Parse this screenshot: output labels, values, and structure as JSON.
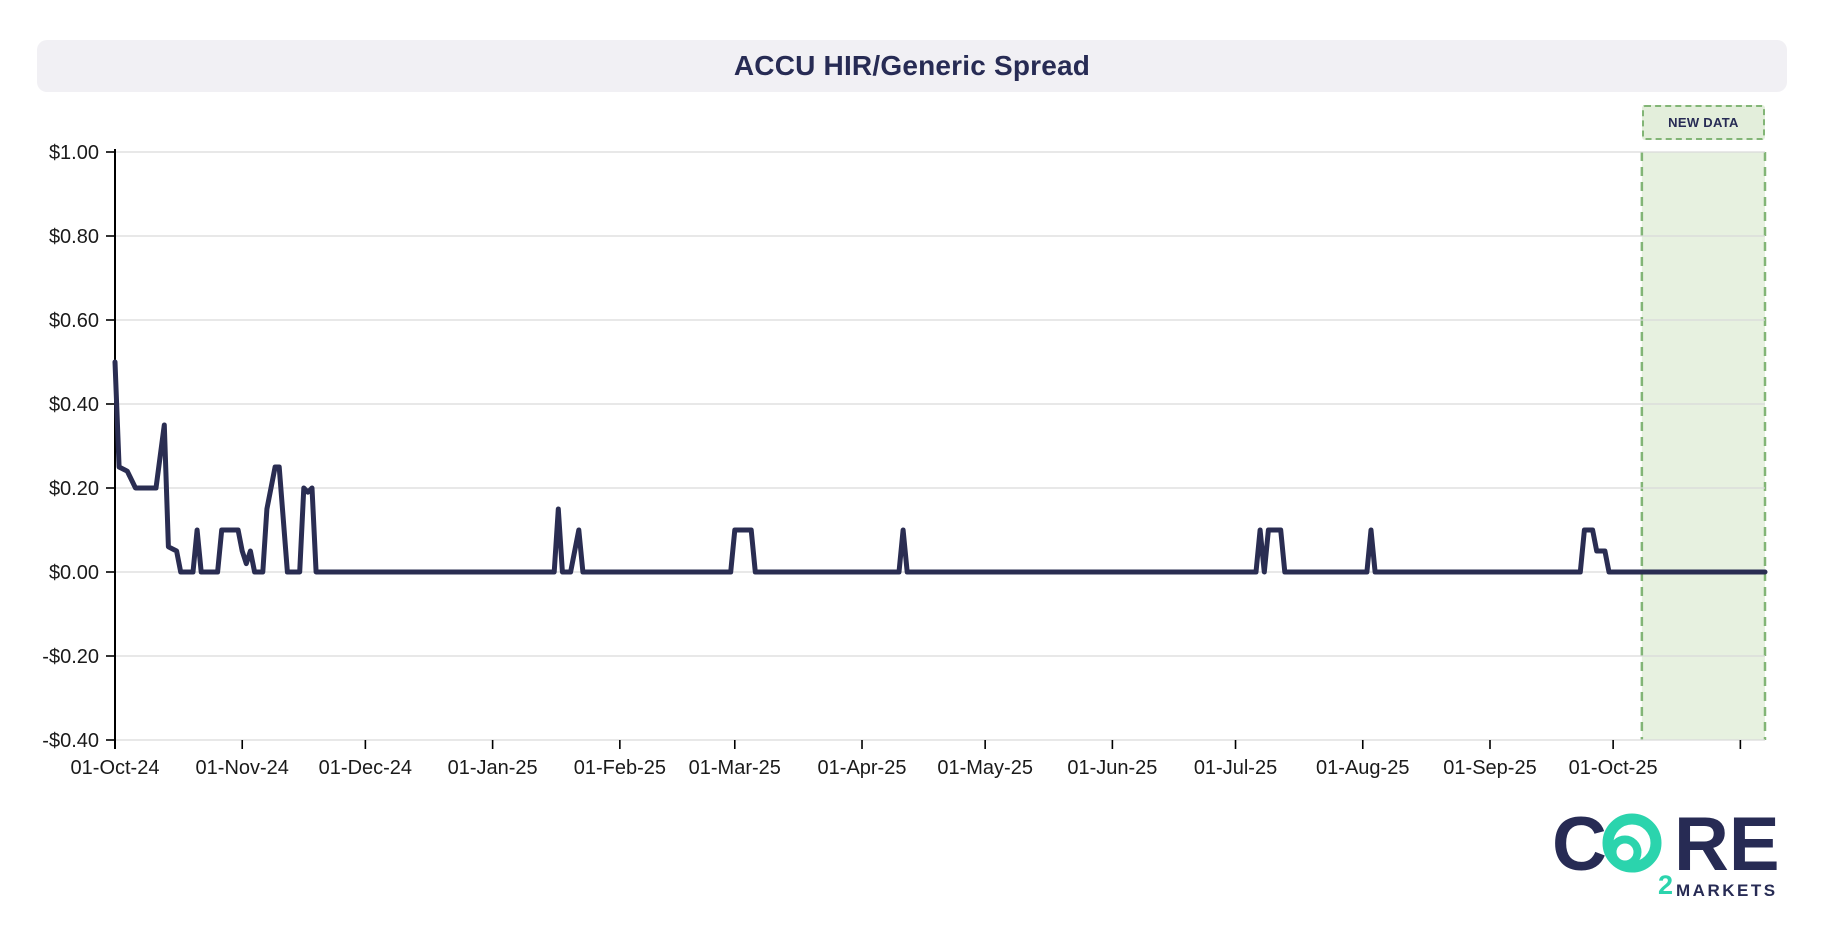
{
  "page_title": "ACCU HIR/Generic Spread",
  "colors": {
    "navy": "#2a2d52",
    "line": "#2a2d52",
    "grid": "#d9d9d9",
    "axis": "#000000",
    "tick_text": "#1a1a1a",
    "title_bg": "#f1f0f4",
    "new_data_fill": "#e3eedb",
    "new_data_border": "#82b576",
    "teal": "#2bd4ad"
  },
  "new_data": {
    "label": "NEW DATA",
    "start": "2025-10-08",
    "end": "2025-11-07"
  },
  "logo": {
    "c": "C",
    "sub": "2",
    "re": "RE",
    "markets": "MARKETS"
  },
  "chart_data": {
    "type": "line",
    "title": "ACCU HIR/Generic Spread",
    "xlabel": "",
    "ylabel": "",
    "ylim": [
      -0.4,
      1.0
    ],
    "x_domain": [
      "2024-10-01",
      "2025-11-07"
    ],
    "grid": "horizontal",
    "legend_position": "none",
    "y_ticks": [
      {
        "v": 1.0,
        "label": "$1.00"
      },
      {
        "v": 0.8,
        "label": "$0.80"
      },
      {
        "v": 0.6,
        "label": "$0.60"
      },
      {
        "v": 0.4,
        "label": "$0.40"
      },
      {
        "v": 0.2,
        "label": "$0.20"
      },
      {
        "v": 0.0,
        "label": "$0.00"
      },
      {
        "v": -0.2,
        "label": "-$0.20"
      },
      {
        "v": -0.4,
        "label": "-$0.40"
      }
    ],
    "x_ticks": [
      {
        "date": "2024-10-01",
        "label": "01-Oct-24"
      },
      {
        "date": "2024-11-01",
        "label": "01-Nov-24"
      },
      {
        "date": "2024-12-01",
        "label": "01-Dec-24"
      },
      {
        "date": "2025-01-01",
        "label": "01-Jan-25"
      },
      {
        "date": "2025-02-01",
        "label": "01-Feb-25"
      },
      {
        "date": "2025-03-01",
        "label": "01-Mar-25"
      },
      {
        "date": "2025-04-01",
        "label": "01-Apr-25"
      },
      {
        "date": "2025-05-01",
        "label": "01-May-25"
      },
      {
        "date": "2025-06-01",
        "label": "01-Jun-25"
      },
      {
        "date": "2025-07-01",
        "label": "01-Jul-25"
      },
      {
        "date": "2025-08-01",
        "label": "01-Aug-25"
      },
      {
        "date": "2025-09-01",
        "label": "01-Sep-25"
      },
      {
        "date": "2025-10-01",
        "label": "01-Oct-25"
      },
      {
        "date": "2025-11-01",
        "label": ""
      }
    ],
    "series": [
      {
        "name": "ACCU HIR/Generic Spread",
        "points": [
          [
            "2024-10-01",
            0.5
          ],
          [
            "2024-10-02",
            0.25
          ],
          [
            "2024-10-04",
            0.24
          ],
          [
            "2024-10-06",
            0.2
          ],
          [
            "2024-10-11",
            0.2
          ],
          [
            "2024-10-13",
            0.35
          ],
          [
            "2024-10-14",
            0.06
          ],
          [
            "2024-10-16",
            0.05
          ],
          [
            "2024-10-17",
            0.0
          ],
          [
            "2024-10-20",
            0.0
          ],
          [
            "2024-10-21",
            0.1
          ],
          [
            "2024-10-22",
            0.0
          ],
          [
            "2024-10-26",
            0.0
          ],
          [
            "2024-10-27",
            0.1
          ],
          [
            "2024-10-31",
            0.1
          ],
          [
            "2024-11-01",
            0.05
          ],
          [
            "2024-11-02",
            0.02
          ],
          [
            "2024-11-03",
            0.05
          ],
          [
            "2024-11-04",
            0.0
          ],
          [
            "2024-11-06",
            0.0
          ],
          [
            "2024-11-07",
            0.15
          ],
          [
            "2024-11-09",
            0.25
          ],
          [
            "2024-11-10",
            0.25
          ],
          [
            "2024-11-12",
            0.0
          ],
          [
            "2024-11-15",
            0.0
          ],
          [
            "2024-11-16",
            0.2
          ],
          [
            "2024-11-17",
            0.19
          ],
          [
            "2024-11-18",
            0.2
          ],
          [
            "2024-11-19",
            0.0
          ],
          [
            "2025-01-16",
            0.0
          ],
          [
            "2025-01-17",
            0.15
          ],
          [
            "2025-01-18",
            0.0
          ],
          [
            "2025-01-20",
            0.0
          ],
          [
            "2025-01-22",
            0.1
          ],
          [
            "2025-01-23",
            0.0
          ],
          [
            "2025-02-28",
            0.0
          ],
          [
            "2025-03-01",
            0.1
          ],
          [
            "2025-03-05",
            0.1
          ],
          [
            "2025-03-06",
            0.0
          ],
          [
            "2025-04-10",
            0.0
          ],
          [
            "2025-04-11",
            0.1
          ],
          [
            "2025-04-12",
            0.0
          ],
          [
            "2025-07-06",
            0.0
          ],
          [
            "2025-07-07",
            0.1
          ],
          [
            "2025-07-08",
            0.0
          ],
          [
            "2025-07-09",
            0.1
          ],
          [
            "2025-07-12",
            0.1
          ],
          [
            "2025-07-13",
            0.0
          ],
          [
            "2025-08-02",
            0.0
          ],
          [
            "2025-08-03",
            0.1
          ],
          [
            "2025-08-04",
            0.0
          ],
          [
            "2025-09-23",
            0.0
          ],
          [
            "2025-09-24",
            0.1
          ],
          [
            "2025-09-26",
            0.1
          ],
          [
            "2025-09-27",
            0.05
          ],
          [
            "2025-09-29",
            0.05
          ],
          [
            "2025-09-30",
            0.0
          ],
          [
            "2025-11-07",
            0.0
          ]
        ]
      }
    ]
  }
}
